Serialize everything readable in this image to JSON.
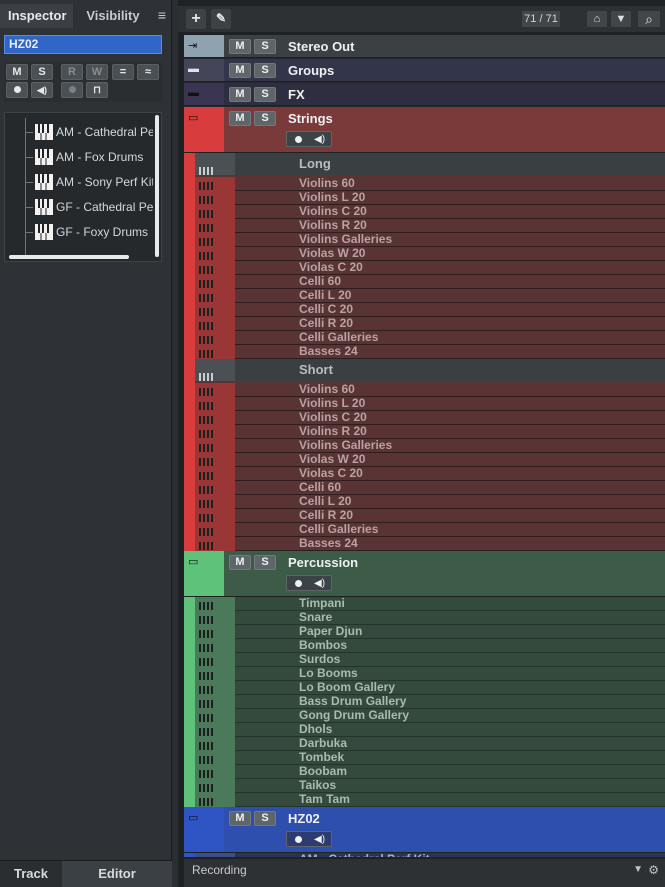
{
  "inspector": {
    "tab_inspector": "Inspector",
    "tab_visibility": "Visibility",
    "menu_icon": "≡",
    "track_name": "HZ02",
    "buttons": {
      "mute": "M",
      "solo": "S",
      "read": "R",
      "write": "W",
      "eq": "=",
      "ellipse": "≈"
    },
    "list_items": [
      {
        "label": "AM - Cathedral Perf"
      },
      {
        "label": "AM - Fox Drums"
      },
      {
        "label": "AM - Sony Perf Kit"
      },
      {
        "label": "GF - Cathedral Perf"
      },
      {
        "label": "GF - Foxy Drums"
      }
    ],
    "bottom_tabs": {
      "track": "Track",
      "editor": "Editor"
    }
  },
  "toolbar": {
    "add": "+",
    "edit": "✎",
    "counter": "71 / 71",
    "search": "⌕"
  },
  "tracks": {
    "mute": "M",
    "solo": "S",
    "stereo_out": "Stereo Out",
    "groups": "Groups",
    "fx": "FX",
    "strings": "Strings",
    "long": "Long",
    "short": "Short",
    "long_items": [
      "Violins 60",
      "Violins L 20",
      "Violins C 20",
      "Violins R 20",
      "Violins Galleries",
      "Violas W 20",
      "Violas C 20",
      "Celli 60",
      "Celli L 20",
      "Celli C 20",
      "Celli R 20",
      "Celli Galleries",
      "Basses 24"
    ],
    "short_items": [
      "Violins 60",
      "Violins L 20",
      "Violins C 20",
      "Violins R 20",
      "Violins Galleries",
      "Violas W 20",
      "Violas C 20",
      "Celli 60",
      "Celli L 20",
      "Celli R 20",
      "Celli Galleries",
      "Basses 24"
    ],
    "percussion": "Percussion",
    "percussion_items": [
      "Timpani",
      "Snare",
      "Paper Djun",
      "Bombos",
      "Surdos",
      "Lo Booms",
      "Lo Boom Gallery",
      "Bass Drum Gallery",
      "Gong Drum Gallery",
      "Dhols",
      "Darbuka",
      "Tombek",
      "Boobam",
      "Taikos",
      "Tam Tam"
    ],
    "hz02": "HZ02",
    "hz02_items": [
      "AM - Cathedral Perf Kit"
    ]
  },
  "status": {
    "label": "Recording"
  },
  "colors": {
    "strings": "#d93c3c",
    "percussion": "#5ec27a",
    "hz02": "#2f55c4",
    "groups": "#45455a",
    "fx": "#3a3550",
    "stereo": "#8fa2b0"
  }
}
